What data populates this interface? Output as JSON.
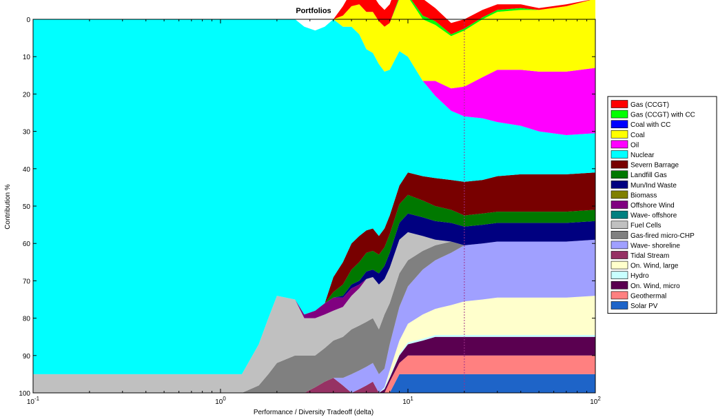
{
  "chart_data": {
    "type": "area",
    "title": "Portfolios",
    "xlabel": "Performance / Diversity Tradeoff (delta)",
    "ylabel": "Contribution %",
    "xscale": "log",
    "xlim": [
      0.1,
      100
    ],
    "ylim": [
      0,
      100
    ],
    "y_inverted": true,
    "x_ticks": [
      {
        "value": 0.1,
        "base": "10",
        "exp": "-1"
      },
      {
        "value": 1,
        "base": "10",
        "exp": "0"
      },
      {
        "value": 10,
        "base": "10",
        "exp": "1"
      },
      {
        "value": 100,
        "base": "10",
        "exp": "2"
      }
    ],
    "y_ticks": [
      0,
      10,
      20,
      30,
      40,
      50,
      60,
      70,
      80,
      90,
      100
    ],
    "grid": false,
    "legend_position": "right",
    "reference_line": {
      "x": 20,
      "style": "dotted",
      "color": "#a0308a"
    },
    "x": [
      0.1,
      1.2,
      1.3,
      1.6,
      1.8,
      2.0,
      2.5,
      2.8,
      3.2,
      3.6,
      4.0,
      4.5,
      5.0,
      5.5,
      6.0,
      6.5,
      7.0,
      7.5,
      8.0,
      9.0,
      10.0,
      12.0,
      14.0,
      17.0,
      20.0,
      25.0,
      30.0,
      40.0,
      50.0,
      70.0,
      100.0
    ],
    "series": [
      {
        "name": "Solar PV",
        "color": "#1e64c8",
        "values": [
          0,
          0,
          0,
          0,
          0,
          0,
          0,
          0,
          0,
          0,
          0,
          0,
          0,
          0,
          0,
          0,
          0,
          0,
          0,
          5,
          5,
          5,
          5,
          5,
          5,
          5,
          5,
          5,
          5,
          5,
          5
        ]
      },
      {
        "name": "Geothermal",
        "color": "#ff8080",
        "values": [
          0,
          0,
          0,
          0,
          0,
          0,
          0,
          0,
          0,
          0,
          0,
          0,
          0,
          0,
          0,
          0,
          0,
          0,
          3,
          3,
          5,
          5,
          5,
          5,
          5,
          5,
          5,
          5,
          5,
          5,
          5
        ]
      },
      {
        "name": "On. Wind, micro",
        "color": "#5a0050",
        "values": [
          0,
          0,
          0,
          0,
          0,
          0,
          0,
          0,
          0,
          0,
          0,
          0,
          0,
          0,
          0,
          0,
          0,
          1,
          1,
          2,
          3,
          4,
          5,
          5,
          5,
          5,
          5,
          5,
          5,
          5,
          5
        ]
      },
      {
        "name": "Hydro",
        "color": "#c8ffff",
        "values": [
          0,
          0,
          0,
          0,
          0,
          0,
          0,
          0,
          0,
          0,
          0,
          0,
          0,
          0,
          0,
          0,
          0,
          0.5,
          0.5,
          0.5,
          0.5,
          0.5,
          0.5,
          0.5,
          0.5,
          0.5,
          0.5,
          0.5,
          0.5,
          0.5,
          0.5
        ]
      },
      {
        "name": "On. Wind, large",
        "color": "#ffffcc",
        "values": [
          0,
          0,
          0,
          0,
          0,
          0,
          0,
          0,
          0,
          0,
          0,
          0,
          0,
          0,
          0,
          0,
          0,
          0,
          1.5,
          3.5,
          5,
          6.5,
          7,
          8,
          9,
          9.5,
          10,
          10,
          10,
          10,
          10.5
        ]
      },
      {
        "name": "Tidal Stream",
        "color": "#963264",
        "values": [
          0,
          0,
          0,
          0,
          0,
          0,
          0,
          0,
          1.5,
          3,
          4,
          2,
          0,
          1,
          2,
          3,
          0,
          0,
          0,
          0,
          0,
          0,
          0,
          0,
          0,
          0,
          0,
          0,
          0,
          0,
          0
        ]
      },
      {
        "name": "Wave- shoreline",
        "color": "#a0a0ff",
        "values": [
          0,
          0,
          0,
          0,
          0,
          0,
          0,
          0,
          0,
          0,
          0,
          2,
          5,
          5,
          5,
          5,
          5,
          5,
          7,
          9,
          10,
          12,
          13,
          14,
          15,
          15,
          15,
          15,
          15,
          15,
          15
        ]
      },
      {
        "name": "Gas-fired micro-CHP",
        "color": "#808080",
        "values": [
          0,
          0,
          0,
          2,
          5,
          8,
          10,
          10,
          8.5,
          9,
          10,
          11,
          12,
          12,
          12,
          12,
          12,
          14.5,
          11,
          9,
          7,
          5,
          4,
          3,
          0,
          0,
          0,
          0,
          0,
          0,
          0
        ]
      },
      {
        "name": "Fuel Cells",
        "color": "#c0c0c0",
        "values": [
          5,
          5,
          5,
          11,
          15,
          18,
          15,
          10,
          10,
          9,
          8,
          8,
          9,
          10,
          11.5,
          11,
          12,
          9.5,
          9.5,
          9,
          7.5,
          4,
          1.5,
          0,
          0,
          0,
          0,
          0,
          0,
          0,
          0
        ]
      },
      {
        "name": "Wave- offshore",
        "color": "#008080",
        "values": [
          0,
          0,
          0,
          0,
          0,
          0,
          0,
          0,
          0,
          0,
          0,
          0,
          0,
          0,
          0,
          0,
          0,
          0,
          0,
          0,
          0,
          0,
          0,
          0,
          0,
          0,
          0,
          0,
          0,
          0,
          0
        ]
      },
      {
        "name": "Offshore Wind",
        "color": "#800080",
        "values": [
          0,
          0,
          0,
          0,
          0,
          0,
          0,
          1,
          2,
          3,
          3.5,
          2.5,
          2,
          1,
          0,
          0,
          0,
          0,
          0,
          0,
          0,
          0,
          0,
          0,
          0,
          0,
          0,
          0,
          0,
          0,
          0
        ]
      },
      {
        "name": "Biomass",
        "color": "#808000",
        "values": [
          0,
          0,
          0,
          0,
          0,
          0,
          0,
          0,
          0,
          0,
          0,
          0,
          0,
          0,
          0,
          0,
          0,
          0,
          0,
          0,
          0,
          0,
          0,
          0,
          0,
          0,
          0,
          0,
          0,
          0,
          0
        ]
      },
      {
        "name": "Mun/Ind Waste",
        "color": "#000080",
        "values": [
          0,
          0,
          0,
          0,
          0,
          0,
          0,
          0,
          0,
          0,
          0,
          0.5,
          1,
          1,
          2,
          2,
          3,
          3.5,
          4,
          4.5,
          5,
          5,
          5,
          5,
          5,
          5,
          5,
          5,
          5,
          5,
          5
        ]
      },
      {
        "name": "Landfill Gas",
        "color": "#007800",
        "values": [
          0,
          0,
          0,
          0,
          0,
          0,
          0,
          0,
          0,
          0,
          1.5,
          3,
          4,
          5,
          5,
          5,
          5,
          5,
          5,
          5,
          5,
          4.5,
          4,
          3.5,
          3,
          3,
          3,
          3,
          3,
          3,
          3
        ]
      },
      {
        "name": "Severn Barrage",
        "color": "#780000",
        "values": [
          0,
          0,
          0,
          0,
          0,
          0,
          0,
          0,
          0,
          0,
          4,
          6,
          7,
          7,
          6,
          6,
          5,
          5,
          5,
          5,
          6,
          6.5,
          7.5,
          8,
          9,
          9,
          9.5,
          10,
          10,
          10,
          10
        ]
      },
      {
        "name": "Nuclear",
        "color": "#00ffff",
        "values": [
          95,
          95,
          95,
          87,
          80,
          74,
          75,
          77,
          75,
          74,
          69,
          63,
          58,
          54,
          48.5,
          47,
          46,
          42,
          39,
          36,
          31,
          25.5,
          22,
          18.5,
          17.5,
          16.5,
          14.5,
          13,
          11.5,
          10.5,
          10.5
        ]
      },
      {
        "name": "Oil",
        "color": "#ff00ff",
        "values": [
          0,
          0,
          0,
          0,
          0,
          0,
          0,
          0,
          0,
          0,
          0,
          0,
          0,
          0,
          0,
          0,
          0,
          0,
          0,
          0,
          0,
          0,
          4,
          6,
          8,
          11,
          14,
          15,
          16,
          17,
          17.5
        ]
      },
      {
        "name": "Coal",
        "color": "#ffff00",
        "values": [
          0,
          0,
          0,
          0,
          0,
          0,
          0,
          0,
          0,
          0,
          0,
          3,
          5.5,
          8,
          10,
          11,
          11.5,
          12,
          12.5,
          14,
          16,
          16.5,
          15,
          14,
          15,
          15.5,
          15.5,
          16,
          16.5,
          17.5,
          18.5
        ]
      },
      {
        "name": "Coal with CC",
        "color": "#0000ff",
        "values": [
          0,
          0,
          0,
          0,
          0,
          0,
          0,
          0,
          0,
          0,
          0,
          0,
          0,
          0,
          0,
          0,
          0,
          0,
          0,
          0,
          0,
          0,
          0,
          0,
          0,
          0,
          0,
          0,
          0,
          0,
          0
        ]
      },
      {
        "name": "Gas (CCGT) with CC",
        "color": "#00ff00",
        "values": [
          0,
          0,
          0,
          0,
          0,
          0,
          0,
          0,
          0,
          0,
          0,
          0,
          0,
          0,
          0,
          0,
          0,
          0,
          0,
          0.5,
          0.5,
          1,
          1,
          0.5,
          0.5,
          0.5,
          0.5,
          0.5,
          0,
          0,
          0
        ]
      },
      {
        "name": "Gas (CCGT)",
        "color": "#ff0000",
        "values": [
          0,
          0,
          0,
          0,
          0,
          0,
          0,
          0,
          0,
          0,
          0,
          2.5,
          4,
          4.5,
          4.5,
          4.5,
          4.5,
          4.5,
          5,
          5,
          5,
          4.5,
          3.5,
          3,
          2.5,
          2,
          1.5,
          1,
          0.5,
          0.5,
          0
        ]
      }
    ],
    "legend": [
      {
        "label": "Gas (CCGT)",
        "color": "#ff0000"
      },
      {
        "label": "Gas (CCGT) with CC",
        "color": "#00ff00"
      },
      {
        "label": "Coal with CC",
        "color": "#0000ff"
      },
      {
        "label": "Coal",
        "color": "#ffff00"
      },
      {
        "label": "Oil",
        "color": "#ff00ff"
      },
      {
        "label": "Nuclear",
        "color": "#00ffff"
      },
      {
        "label": "Severn Barrage",
        "color": "#780000"
      },
      {
        "label": "Landfill Gas",
        "color": "#007800"
      },
      {
        "label": "Mun/Ind Waste",
        "color": "#000080"
      },
      {
        "label": "Biomass",
        "color": "#808000"
      },
      {
        "label": "Offshore Wind",
        "color": "#800080"
      },
      {
        "label": "Wave- offshore",
        "color": "#008080"
      },
      {
        "label": "Fuel Cells",
        "color": "#c0c0c0"
      },
      {
        "label": "Gas-fired micro-CHP",
        "color": "#808080"
      },
      {
        "label": "Wave- shoreline",
        "color": "#a0a0ff"
      },
      {
        "label": "Tidal Stream",
        "color": "#963264"
      },
      {
        "label": "On. Wind, large",
        "color": "#ffffcc"
      },
      {
        "label": "Hydro",
        "color": "#c8ffff"
      },
      {
        "label": "On. Wind, micro",
        "color": "#5a0050"
      },
      {
        "label": "Geothermal",
        "color": "#ff8080"
      },
      {
        "label": "Solar PV",
        "color": "#1e64c8"
      }
    ]
  }
}
